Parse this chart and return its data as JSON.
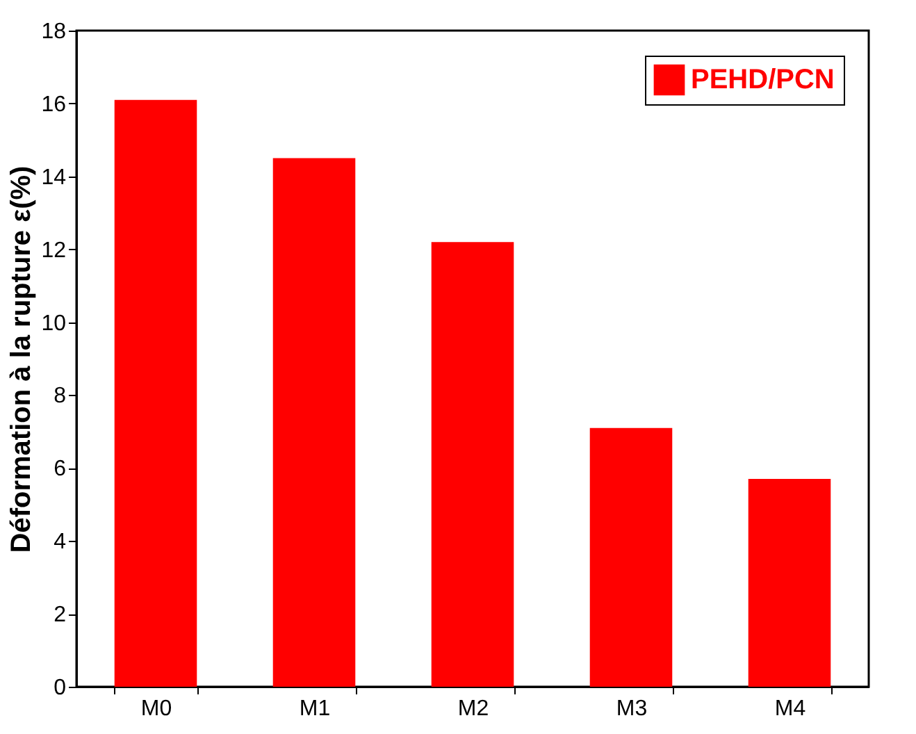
{
  "chart_data": {
    "type": "bar",
    "ylabel": "Déformation à la rupture ε(%)",
    "categories": [
      "M0",
      "M1",
      "M2",
      "M3",
      "M4"
    ],
    "series": [
      {
        "name": "PEHD/PCN",
        "color": "#ff0000",
        "values": [
          16.1,
          14.5,
          12.2,
          7.1,
          5.7
        ]
      }
    ],
    "ylim": [
      0,
      18
    ],
    "yticks": [
      0,
      2,
      4,
      6,
      8,
      10,
      12,
      14,
      16,
      18
    ],
    "grid": false,
    "legend": "top right"
  }
}
